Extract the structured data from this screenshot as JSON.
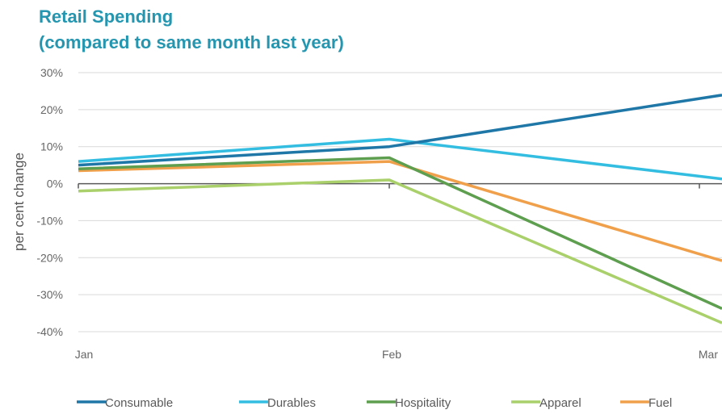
{
  "chart_data": {
    "type": "line",
    "title": "Retail Spending",
    "subtitle": "(compared to same month last year)",
    "xlabel": "",
    "ylabel": "per cent change",
    "categories": [
      "Jan",
      "Feb",
      "Mar"
    ],
    "y_ticks": [
      "30%",
      "20%",
      "10%",
      "0%",
      "-10%",
      "-20%",
      "-30%",
      "-40%"
    ],
    "ylim": [
      -40,
      30
    ],
    "grid": true,
    "legend_position": "bottom",
    "series": [
      {
        "name": "Consumable",
        "color": "#1f77a8",
        "values": [
          5,
          10,
          23
        ]
      },
      {
        "name": "Durables",
        "color": "#33bde0",
        "values": [
          6,
          12,
          2
        ]
      },
      {
        "name": "Hospitality",
        "color": "#5e9e4f",
        "values": [
          4,
          7,
          -31
        ]
      },
      {
        "name": "Apparel",
        "color": "#a9d06a",
        "values": [
          -2,
          1,
          -35
        ]
      },
      {
        "name": "Fuel",
        "color": "#f0a04b",
        "values": [
          3.5,
          6,
          -19
        ]
      }
    ]
  }
}
